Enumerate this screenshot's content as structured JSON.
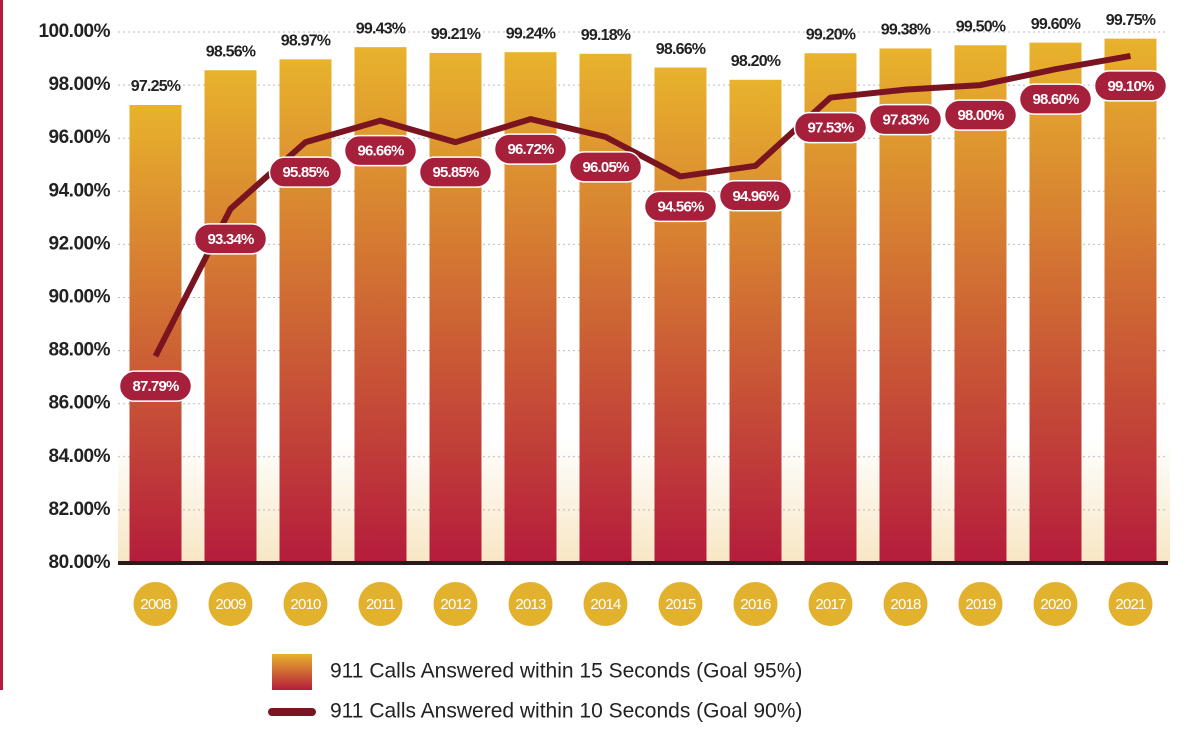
{
  "chart_data": {
    "type": "bar",
    "categories": [
      "2008",
      "2009",
      "2010",
      "2011",
      "2012",
      "2013",
      "2014",
      "2015",
      "2016",
      "2017",
      "2018",
      "2019",
      "2020",
      "2021"
    ],
    "series": [
      {
        "name": "911 Calls Answered within 15 Seconds (Goal 95%)",
        "type": "bar",
        "color": [
          "#e8b32c",
          "#b51c3c"
        ],
        "values": [
          97.25,
          98.56,
          98.97,
          99.43,
          99.21,
          99.24,
          99.18,
          98.66,
          98.2,
          99.2,
          99.38,
          99.5,
          99.6,
          99.75
        ],
        "value_labels": [
          "97.25%",
          "98.56%",
          "98.97%",
          "99.43%",
          "99.21%",
          "99.24%",
          "99.18%",
          "98.66%",
          "98.20%",
          "99.20%",
          "99.38%",
          "99.50%",
          "99.60%",
          "99.75%"
        ]
      },
      {
        "name": "911 Calls Answered within 10 Seconds (Goal 90%)",
        "type": "line",
        "color": "#7a1420",
        "values": [
          87.79,
          93.34,
          95.85,
          96.66,
          95.85,
          96.72,
          96.05,
          94.56,
          94.96,
          97.53,
          97.83,
          98.0,
          98.6,
          99.1
        ],
        "value_labels": [
          "87.79%",
          "93.34%",
          "95.85%",
          "96.66%",
          "95.85%",
          "96.72%",
          "96.05%",
          "94.56%",
          "94.96%",
          "97.53%",
          "97.83%",
          "98.00%",
          "98.60%",
          "99.10%"
        ]
      }
    ],
    "ylim": [
      80,
      100
    ],
    "yticks": [
      {
        "value": 80,
        "label": "80.00%"
      },
      {
        "value": 82,
        "label": "82.00%"
      },
      {
        "value": 84,
        "label": "84.00%"
      },
      {
        "value": 86,
        "label": "86.00%"
      },
      {
        "value": 88,
        "label": "88.00%"
      },
      {
        "value": 90,
        "label": "90.00%"
      },
      {
        "value": 92,
        "label": "92.00%"
      },
      {
        "value": 94,
        "label": "94.00%"
      },
      {
        "value": 96,
        "label": "96.00%"
      },
      {
        "value": 98,
        "label": "98.00%"
      },
      {
        "value": 100,
        "label": "100.00%"
      }
    ],
    "grid": true
  }
}
